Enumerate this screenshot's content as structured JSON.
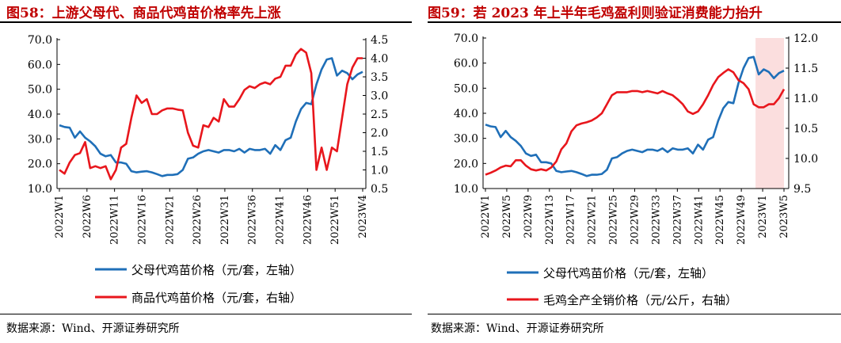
{
  "charts": [
    {
      "title": "图58：上游父母代、商品代鸡苗价格率先上涨",
      "source": "数据来源：Wind、开源证券研究所"
    },
    {
      "title": "图59：若 2023 年上半年毛鸡盈利则验证消费能力抬升",
      "source": "数据来源：Wind、开源证券研究所"
    }
  ],
  "colors": {
    "blue": "#1f6fb8",
    "red": "#e8161c",
    "shade": "#fbdede"
  },
  "chart_data": [
    {
      "type": "line",
      "title": "",
      "x_ticks": [
        "2022W1",
        "2022W6",
        "2022W11",
        "2022W16",
        "2022W21",
        "2022W26",
        "2022W31",
        "2022W36",
        "2022W41",
        "2022W46",
        "2022W51",
        "2023W4"
      ],
      "y_left": {
        "lim": [
          10.0,
          70.0
        ],
        "ticks": [
          "10.0",
          "20.0",
          "30.0",
          "40.0",
          "50.0",
          "60.0",
          "70.0"
        ]
      },
      "y_right": {
        "lim": [
          0.5,
          4.5
        ],
        "ticks": [
          "0.5",
          "1.0",
          "1.5",
          "2.0",
          "2.5",
          "3.0",
          "3.5",
          "4.0",
          "4.5"
        ]
      },
      "legend_position": "bottom",
      "grid": false,
      "series": [
        {
          "name": "父母代鸡苗价格（元/套，左轴）",
          "axis": "left",
          "color": "blue",
          "values": [
            35.5,
            34.8,
            34.5,
            30.5,
            33.0,
            30.5,
            29.0,
            27.0,
            24.0,
            23.0,
            23.5,
            20.5,
            20.5,
            20.0,
            17.0,
            16.5,
            16.8,
            17.0,
            16.5,
            15.8,
            15.0,
            15.5,
            15.5,
            15.8,
            17.5,
            22.0,
            22.5,
            24.0,
            25.0,
            25.5,
            25.0,
            24.5,
            25.5,
            25.5,
            25.0,
            26.0,
            24.5,
            26.0,
            25.5,
            25.5,
            26.0,
            24.0,
            27.5,
            25.5,
            29.5,
            30.5,
            37.0,
            42.0,
            44.5,
            44.0,
            52.0,
            58.0,
            62.0,
            62.5,
            55.5,
            57.5,
            56.5,
            54.0,
            56.0,
            57.0
          ]
        },
        {
          "name": "商品代鸡苗价格（元/套，右轴）",
          "axis": "right",
          "color": "red",
          "values": [
            1.0,
            0.9,
            1.2,
            1.4,
            1.45,
            1.75,
            1.05,
            1.1,
            1.05,
            1.1,
            0.75,
            1.0,
            1.6,
            1.7,
            2.4,
            3.0,
            2.8,
            2.9,
            2.5,
            2.5,
            2.6,
            2.65,
            2.65,
            2.62,
            2.6,
            2.0,
            1.65,
            1.6,
            2.2,
            2.15,
            2.4,
            2.3,
            2.9,
            2.7,
            2.7,
            2.9,
            3.15,
            3.25,
            3.2,
            3.3,
            3.35,
            3.3,
            3.45,
            3.5,
            3.8,
            3.8,
            4.1,
            4.25,
            4.15,
            3.6,
            1.0,
            1.6,
            1.0,
            1.6,
            1.5,
            2.4,
            3.3,
            3.75,
            4.0,
            4.0
          ]
        }
      ]
    },
    {
      "type": "line",
      "title": "",
      "x_ticks": [
        "2022W1",
        "2022W5",
        "2022W9",
        "2022W13",
        "2022W17",
        "2022W21",
        "2022W25",
        "2022W29",
        "2022W33",
        "2022W37",
        "2022W41",
        "2022W45",
        "2022W49",
        "2023W1",
        "2023W5"
      ],
      "y_left": {
        "lim": [
          10.0,
          70.0
        ],
        "ticks": [
          "10.0",
          "20.0",
          "30.0",
          "40.0",
          "50.0",
          "60.0",
          "70.0"
        ]
      },
      "y_right": {
        "lim": [
          9.5,
          12.0
        ],
        "ticks": [
          "9.5",
          "10.0",
          "10.5",
          "11.0",
          "11.5",
          "12.0"
        ]
      },
      "legend_position": "bottom",
      "grid": false,
      "shaded_range": [
        "2023W1",
        "2023W5"
      ],
      "series": [
        {
          "name": "父母代鸡苗价格（元/套，左轴）",
          "axis": "left",
          "color": "blue",
          "values": [
            35.5,
            34.8,
            34.5,
            30.5,
            33.0,
            30.5,
            29.0,
            27.0,
            24.0,
            23.0,
            23.5,
            20.5,
            20.5,
            20.0,
            17.0,
            16.5,
            16.8,
            17.0,
            16.5,
            15.8,
            15.0,
            15.5,
            15.5,
            15.8,
            17.5,
            22.0,
            22.5,
            24.0,
            25.0,
            25.5,
            25.0,
            24.5,
            25.5,
            25.5,
            25.0,
            26.0,
            24.5,
            26.0,
            25.5,
            25.5,
            26.0,
            24.0,
            27.5,
            25.5,
            29.5,
            30.5,
            37.0,
            42.0,
            44.5,
            44.0,
            52.0,
            58.0,
            62.0,
            62.5,
            55.5,
            57.5,
            56.5,
            54.0,
            56.0,
            57.0
          ]
        },
        {
          "name": "毛鸡全产全销价格（元/公斤，右轴）",
          "axis": "right",
          "color": "red",
          "values": [
            9.73,
            9.76,
            9.8,
            9.85,
            9.88,
            9.87,
            9.97,
            9.97,
            9.88,
            9.82,
            9.8,
            9.82,
            9.8,
            9.85,
            9.95,
            10.15,
            10.25,
            10.45,
            10.55,
            10.58,
            10.6,
            10.63,
            10.68,
            10.75,
            10.9,
            11.05,
            11.1,
            11.1,
            11.1,
            11.12,
            11.12,
            11.1,
            11.12,
            11.1,
            11.08,
            11.12,
            11.08,
            11.05,
            10.98,
            10.9,
            10.78,
            10.74,
            10.78,
            10.9,
            11.05,
            11.22,
            11.35,
            11.42,
            11.48,
            11.43,
            11.3,
            11.25,
            11.15,
            10.9,
            10.85,
            10.85,
            10.9,
            10.9,
            11.0,
            11.15
          ]
        }
      ]
    }
  ]
}
